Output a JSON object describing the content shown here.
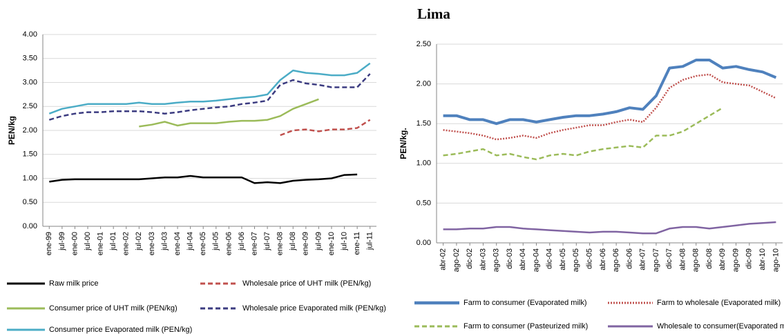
{
  "chart_data": [
    {
      "type": "line",
      "y_label": "PEN/kg",
      "categories": [
        "ene-99",
        "jul-99",
        "ene-00",
        "jul-00",
        "ene-01",
        "jul-01",
        "ene-02",
        "jul-02",
        "ene-03",
        "jul-03",
        "ene-04",
        "jul-04",
        "ene-05",
        "jul-05",
        "ene-06",
        "jul-06",
        "ene-07",
        "jul-07",
        "ene-08",
        "jul-08",
        "ene-09",
        "jul-09",
        "ene-10",
        "jul-10",
        "ene-11",
        "jul-11"
      ],
      "ylim": [
        0,
        4
      ],
      "yticks": [
        {
          "value": 0,
          "label": "0.00"
        },
        {
          "value": 0.5,
          "label": "0.50"
        },
        {
          "value": 1,
          "label": "1.00"
        },
        {
          "value": 1.5,
          "label": "1.50"
        },
        {
          "value": 2,
          "label": "2.00"
        },
        {
          "value": 2.5,
          "label": "2.50"
        },
        {
          "value": 3,
          "label": "3.00"
        },
        {
          "value": 3.5,
          "label": "3.50"
        },
        {
          "value": 4,
          "label": "4.00"
        }
      ],
      "grid": true,
      "legend": "bottom",
      "series": [
        {
          "name": "Raw milk price",
          "color": "#000000",
          "style": "solid",
          "values": [
            0.93,
            0.97,
            0.98,
            0.98,
            0.98,
            0.98,
            0.98,
            0.98,
            1.0,
            1.02,
            1.02,
            1.05,
            1.02,
            1.02,
            1.02,
            1.02,
            0.9,
            0.92,
            0.9,
            0.95,
            0.97,
            0.98,
            1.0,
            1.07,
            1.08,
            null
          ]
        },
        {
          "name": "Wholesale price of UHT milk (PEN/kg)",
          "color": "#c0504d",
          "style": "dashed",
          "values": [
            null,
            null,
            null,
            null,
            null,
            null,
            null,
            null,
            null,
            null,
            null,
            null,
            null,
            null,
            null,
            null,
            null,
            null,
            1.9,
            2.0,
            2.02,
            1.98,
            2.02,
            2.02,
            2.05,
            2.22
          ]
        },
        {
          "name": "Consumer price of UHT milk (PEN/kg)",
          "color": "#9bbb59",
          "style": "solid",
          "values": [
            null,
            null,
            null,
            null,
            null,
            null,
            null,
            2.08,
            2.12,
            2.18,
            2.1,
            2.15,
            2.15,
            2.15,
            2.18,
            2.2,
            2.2,
            2.22,
            2.3,
            2.45,
            2.55,
            2.65,
            null,
            null,
            null,
            null
          ]
        },
        {
          "name": "Wholesale price Evaporated milk (PEN/kg)",
          "color": "#3b3b80",
          "style": "dashed",
          "values": [
            2.22,
            2.3,
            2.35,
            2.38,
            2.38,
            2.4,
            2.4,
            2.4,
            2.38,
            2.35,
            2.38,
            2.42,
            2.45,
            2.48,
            2.5,
            2.55,
            2.58,
            2.62,
            2.95,
            3.05,
            2.98,
            2.95,
            2.9,
            2.9,
            2.9,
            3.18
          ]
        },
        {
          "name": "Consumer price Evaporated milk (PEN/kg)",
          "color": "#4bacc6",
          "style": "solid",
          "values": [
            2.35,
            2.45,
            2.5,
            2.55,
            2.55,
            2.55,
            2.55,
            2.58,
            2.55,
            2.55,
            2.58,
            2.6,
            2.6,
            2.62,
            2.65,
            2.68,
            2.7,
            2.75,
            3.05,
            3.25,
            3.2,
            3.18,
            3.15,
            3.15,
            3.2,
            3.4
          ]
        }
      ]
    },
    {
      "type": "line",
      "title": "Lima",
      "y_label": "PEN/kg.",
      "categories": [
        "abr-02",
        "ago-02",
        "dic-02",
        "abr-03",
        "ago-03",
        "dic-03",
        "abr-04",
        "ago-04",
        "dic-04",
        "abr-05",
        "ago-05",
        "dic-05",
        "abr-06",
        "ago-06",
        "dic-06",
        "abr-07",
        "ago-07",
        "dic-07",
        "abr-08",
        "ago-08",
        "dic-08",
        "abr-09",
        "ago-09",
        "dic-09",
        "abr-10",
        "ago-10"
      ],
      "ylim": [
        0,
        2.5
      ],
      "yticks": [
        {
          "value": 0,
          "label": "0.00"
        },
        {
          "value": 0.5,
          "label": "0.50"
        },
        {
          "value": 1,
          "label": "1.00"
        },
        {
          "value": 1.5,
          "label": "1.50"
        },
        {
          "value": 2,
          "label": "2.00"
        },
        {
          "value": 2.5,
          "label": "2.50"
        }
      ],
      "grid": true,
      "legend": "bottom",
      "series": [
        {
          "name": "Farm to consumer (Evaporated milk)",
          "color": "#4f81bd",
          "style": "thick",
          "values": [
            1.6,
            1.6,
            1.55,
            1.55,
            1.5,
            1.55,
            1.55,
            1.52,
            1.55,
            1.58,
            1.6,
            1.6,
            1.62,
            1.65,
            1.7,
            1.68,
            1.85,
            2.2,
            2.22,
            2.3,
            2.3,
            2.2,
            2.22,
            2.18,
            2.15,
            2.08
          ]
        },
        {
          "name": "Farm to wholesale (Evaporated milk)",
          "color": "#c0504d",
          "style": "dotted",
          "values": [
            1.42,
            1.4,
            1.38,
            1.35,
            1.3,
            1.32,
            1.35,
            1.32,
            1.38,
            1.42,
            1.45,
            1.48,
            1.48,
            1.52,
            1.55,
            1.52,
            1.7,
            1.95,
            2.05,
            2.1,
            2.12,
            2.02,
            2.0,
            1.98,
            1.9,
            1.82
          ]
        },
        {
          "name": "Farm to consumer (Pasteurized milk)",
          "color": "#9bbb59",
          "style": "dashed",
          "values": [
            1.1,
            1.12,
            1.15,
            1.18,
            1.1,
            1.12,
            1.08,
            1.05,
            1.1,
            1.12,
            1.1,
            1.15,
            1.18,
            1.2,
            1.22,
            1.2,
            1.35,
            1.35,
            1.4,
            1.5,
            1.6,
            1.7,
            null,
            null,
            null,
            null
          ]
        },
        {
          "name": "Wholesale to consumer(Evaporated milk)",
          "color": "#8064a2",
          "style": "solid",
          "values": [
            0.17,
            0.17,
            0.18,
            0.18,
            0.2,
            0.2,
            0.18,
            0.17,
            0.16,
            0.15,
            0.14,
            0.13,
            0.14,
            0.14,
            0.13,
            0.12,
            0.12,
            0.18,
            0.2,
            0.2,
            0.18,
            0.2,
            0.22,
            0.24,
            0.25,
            0.26
          ]
        }
      ]
    }
  ]
}
